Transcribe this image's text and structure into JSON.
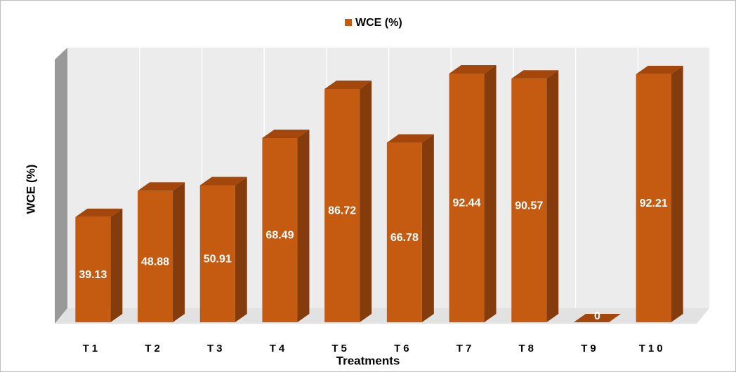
{
  "chart_data": {
    "type": "bar3d",
    "legend": "WCE (%)",
    "y_label": "WCE (%)",
    "x_label": "Treatments",
    "categories": [
      "T1",
      "T2",
      "T3",
      "T4",
      "T5",
      "T6",
      "T7",
      "T8",
      "T9",
      "T10"
    ],
    "values": [
      39.13,
      48.88,
      50.91,
      68.49,
      86.72,
      66.78,
      92.44,
      90.57,
      0,
      92.21
    ],
    "color": "#c55a11",
    "ylim": [
      0,
      100
    ]
  }
}
